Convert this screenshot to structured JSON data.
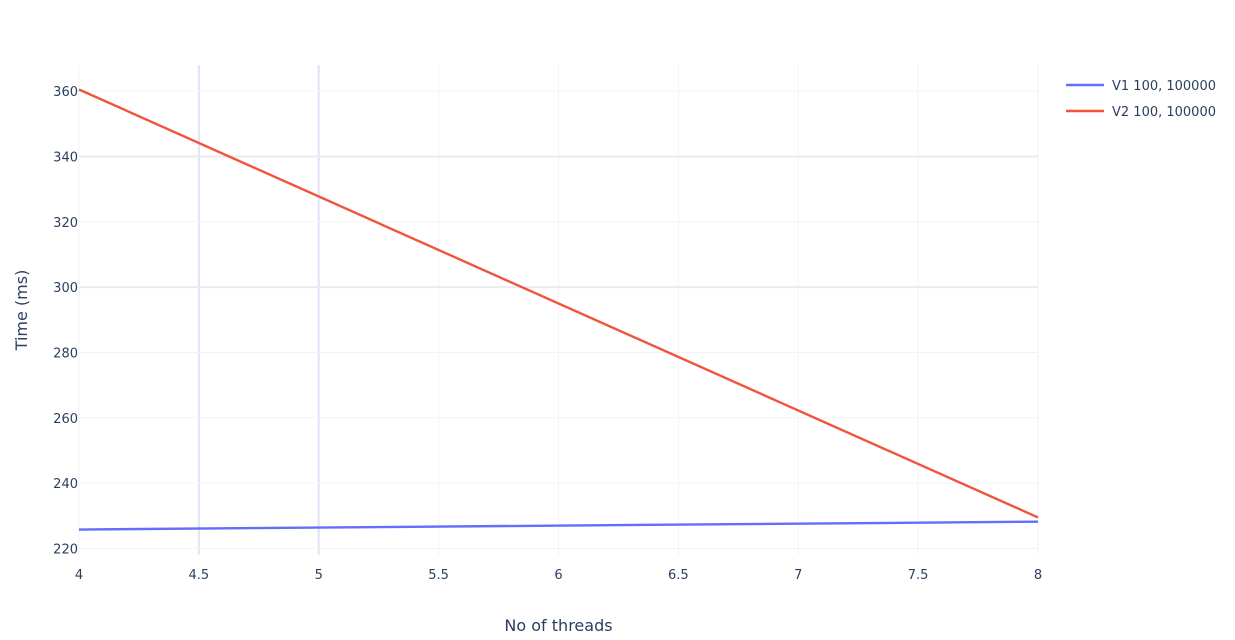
{
  "chart_data": {
    "type": "line",
    "title": "",
    "xlabel": "No of threads",
    "ylabel": "Time (ms)",
    "xlim": [
      4,
      8
    ],
    "ylim": [
      218,
      368
    ],
    "x_ticks": [
      "4",
      "4.5",
      "5",
      "5.5",
      "6",
      "6.5",
      "7",
      "7.5",
      "8"
    ],
    "y_ticks": [
      "220",
      "240",
      "260",
      "280",
      "300",
      "320",
      "340",
      "360"
    ],
    "grid": true,
    "legend_position": "top-right",
    "series": [
      {
        "name": "V1 100, 100000",
        "color": "#636efa",
        "x": [
          4,
          8
        ],
        "y": [
          225.8,
          228.2
        ]
      },
      {
        "name": "V2 100, 100000",
        "color": "#ef553b",
        "x": [
          4,
          8
        ],
        "y": [
          360.5,
          229.5
        ]
      }
    ]
  }
}
